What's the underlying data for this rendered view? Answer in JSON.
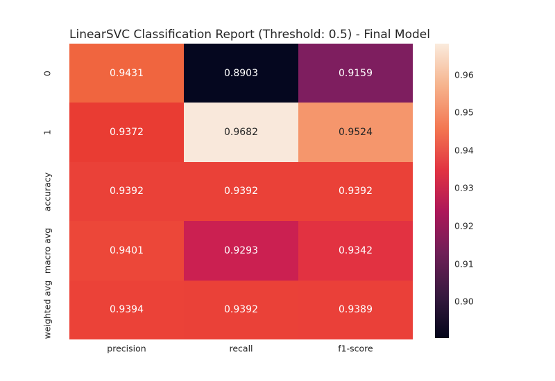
{
  "chart_data": {
    "type": "heatmap",
    "title": "LinearSVC Classification Report (Threshold: 0.5) - Final Model",
    "rows": [
      "0",
      "1",
      "accuracy",
      "macro avg",
      "weighted avg"
    ],
    "columns": [
      "precision",
      "recall",
      "f1-score"
    ],
    "values": [
      [
        0.9431,
        0.8903,
        0.9159
      ],
      [
        0.9372,
        0.9682,
        0.9524
      ],
      [
        0.9392,
        0.9392,
        0.9392
      ],
      [
        0.9401,
        0.9293,
        0.9342
      ],
      [
        0.9394,
        0.9392,
        0.9389
      ]
    ],
    "annotations": [
      [
        "0.9431",
        "0.8903",
        "0.9159"
      ],
      [
        "0.9372",
        "0.9682",
        "0.9524"
      ],
      [
        "0.9392",
        "0.9392",
        "0.9392"
      ],
      [
        "0.9401",
        "0.9293",
        "0.9342"
      ],
      [
        "0.9394",
        "0.9392",
        "0.9389"
      ]
    ],
    "cell_colors": [
      [
        "#f0653f",
        "#05071f",
        "#7e1e5f"
      ],
      [
        "#e93c33",
        "#f9e8db",
        "#f5966c"
      ],
      [
        "#ea4138",
        "#ea4138",
        "#ea4138"
      ],
      [
        "#ec4739",
        "#cb2051",
        "#e23241"
      ],
      [
        "#eb4238",
        "#ea4138",
        "#ea4039"
      ]
    ],
    "cell_text_colors": [
      [
        "#ffffff",
        "#ffffff",
        "#ffffff"
      ],
      [
        "#ffffff",
        "#262626",
        "#262626"
      ],
      [
        "#ffffff",
        "#ffffff",
        "#ffffff"
      ],
      [
        "#ffffff",
        "#ffffff",
        "#ffffff"
      ],
      [
        "#ffffff",
        "#ffffff",
        "#ffffff"
      ]
    ],
    "grid": false,
    "legend_position": "right-colorbar",
    "colormap": "rocket",
    "colorbar": {
      "vmin": 0.8903,
      "vmax": 0.9682,
      "ticks": [
        {
          "label": "0.96",
          "value": 0.96
        },
        {
          "label": "0.95",
          "value": 0.95
        },
        {
          "label": "0.94",
          "value": 0.94
        },
        {
          "label": "0.93",
          "value": 0.93
        },
        {
          "label": "0.92",
          "value": 0.92
        },
        {
          "label": "0.91",
          "value": 0.91
        },
        {
          "label": "0.90",
          "value": 0.9
        }
      ],
      "gradient": [
        {
          "pos": 0,
          "color": "#03051a"
        },
        {
          "pos": 14,
          "color": "#35193e"
        },
        {
          "pos": 29,
          "color": "#701f57"
        },
        {
          "pos": 43,
          "color": "#ad1759"
        },
        {
          "pos": 57,
          "color": "#e13342"
        },
        {
          "pos": 71,
          "color": "#f37651"
        },
        {
          "pos": 86,
          "color": "#f6b48e"
        },
        {
          "pos": 100,
          "color": "#faebdd"
        }
      ]
    }
  }
}
